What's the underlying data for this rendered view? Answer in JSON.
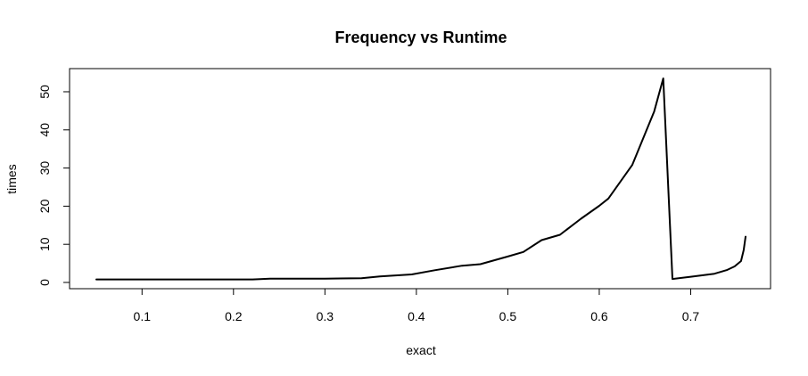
{
  "chart_data": {
    "type": "line",
    "title": "Frequency vs Runtime",
    "xlabel": "exact",
    "ylabel": "times",
    "xlim": [
      0.05,
      0.76
    ],
    "ylim": [
      0,
      53.5
    ],
    "grid": false,
    "x_ticks": [
      0.1,
      0.2,
      0.3,
      0.4,
      0.5,
      0.6,
      0.7
    ],
    "y_ticks": [
      0,
      10,
      20,
      30,
      40,
      50
    ],
    "x_tick_labels": [
      "0.1",
      "0.2",
      "0.3",
      "0.4",
      "0.5",
      "0.6",
      "0.7"
    ],
    "y_tick_labels": [
      "0",
      "10",
      "20",
      "30",
      "40",
      "50"
    ],
    "line_color": "#000000",
    "series": [
      {
        "x": [
          0.05,
          0.1,
          0.15,
          0.2,
          0.221,
          0.24,
          0.3,
          0.34,
          0.36,
          0.395,
          0.42,
          0.45,
          0.47,
          0.5,
          0.517,
          0.537,
          0.557,
          0.58,
          0.6,
          0.61,
          0.636,
          0.66,
          0.67,
          0.68,
          0.7,
          0.726,
          0.74,
          0.748,
          0.755,
          0.758,
          0.76
        ],
        "y": [
          0.8,
          0.8,
          0.8,
          0.8,
          0.8,
          1.0,
          1.0,
          1.1,
          1.6,
          2.1,
          3.2,
          4.4,
          4.8,
          6.8,
          8.0,
          11.1,
          12.5,
          16.7,
          20.1,
          22.0,
          30.8,
          44.8,
          53.5,
          0.9,
          1.5,
          2.3,
          3.3,
          4.2,
          5.6,
          8.5,
          12.0
        ]
      }
    ]
  }
}
